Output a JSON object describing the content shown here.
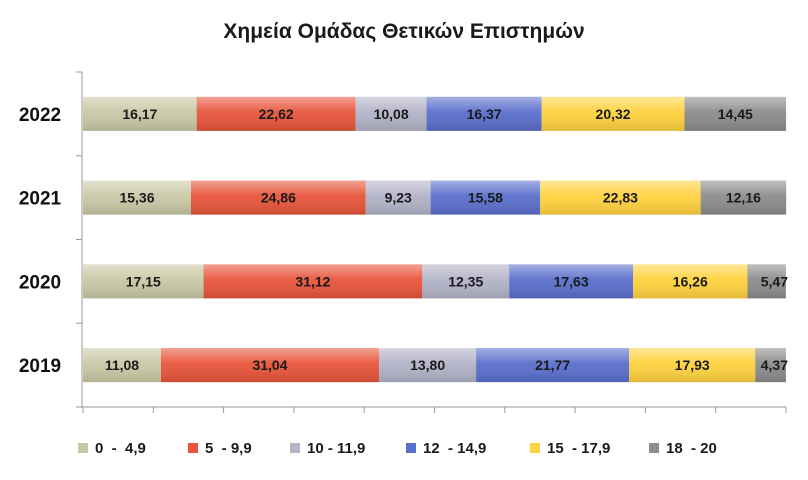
{
  "chart_data": {
    "type": "bar",
    "orientation": "horizontal",
    "stacked": "percent",
    "title": "Χημεία Ομάδας Θετικών Επιστημών",
    "categories": [
      "2022",
      "2021",
      "2020",
      "2019"
    ],
    "series": [
      {
        "name": "0  -  4,9",
        "color": "#c9c9a6",
        "values": [
          16.17,
          15.36,
          17.15,
          11.08
        ],
        "labels": [
          "16,17",
          "15,36",
          "17,15",
          "11,08"
        ]
      },
      {
        "name": "5  - 9,9",
        "color": "#e8553b",
        "values": [
          22.62,
          24.86,
          31.12,
          31.04
        ],
        "labels": [
          "22,62",
          "24,86",
          "31,12",
          "31,04"
        ]
      },
      {
        "name": "10 - 11,9",
        "color": "#b3b3c8",
        "values": [
          10.08,
          9.23,
          12.35,
          13.8
        ],
        "labels": [
          "10,08",
          "9,23",
          "12,35",
          "13,80"
        ]
      },
      {
        "name": "12  - 14,9",
        "color": "#5a6fcc",
        "values": [
          16.37,
          15.58,
          17.63,
          21.77
        ],
        "labels": [
          "16,37",
          "15,58",
          "17,63",
          "21,77"
        ]
      },
      {
        "name": "15  - 17,9",
        "color": "#ffd23e",
        "values": [
          20.32,
          22.83,
          16.26,
          17.93
        ],
        "labels": [
          "20,32",
          "22,83",
          "16,26",
          "17,93"
        ]
      },
      {
        "name": "18  - 20",
        "color": "#8c8c8c",
        "values": [
          14.45,
          12.16,
          5.47,
          4.37
        ],
        "labels": [
          "14,45",
          "12,16",
          "5,47",
          "4,37"
        ]
      }
    ],
    "xlim": [
      0,
      100
    ],
    "grid": false,
    "legend": "bottom"
  }
}
